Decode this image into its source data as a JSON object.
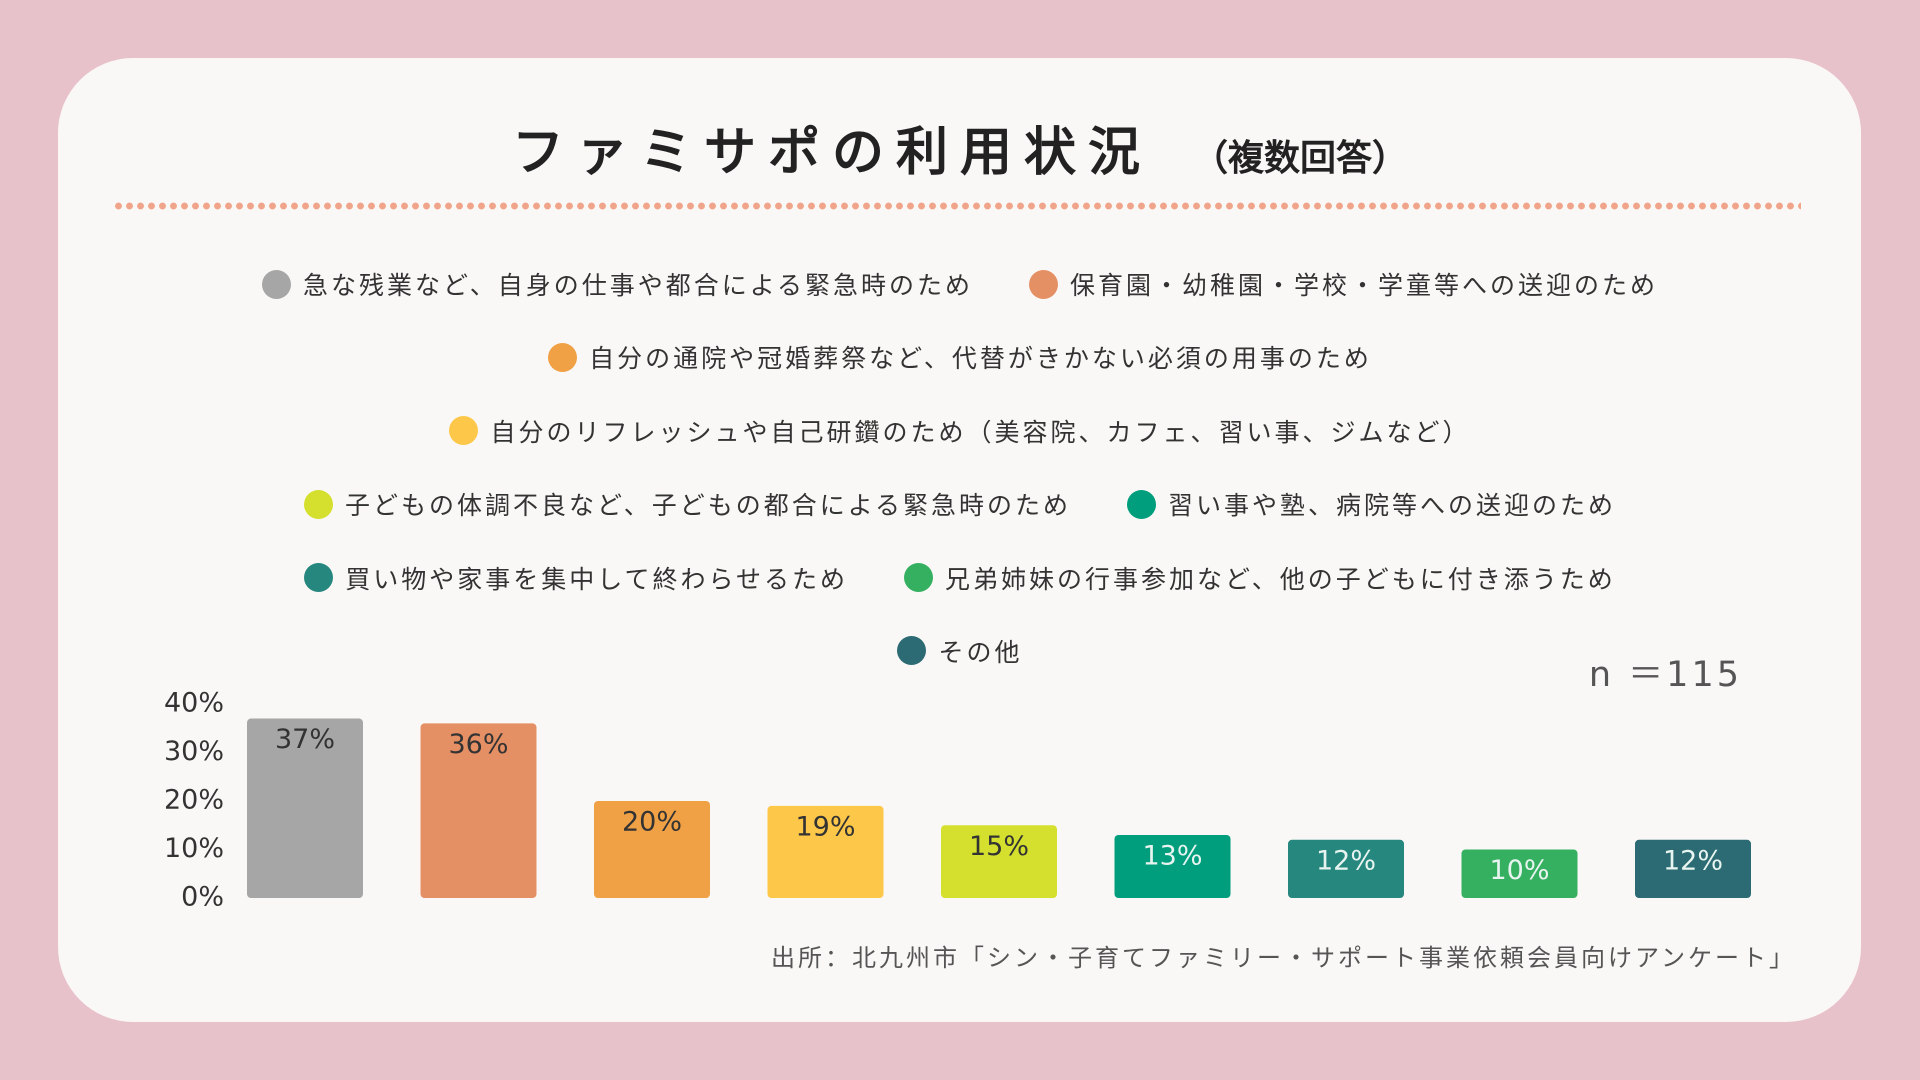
{
  "chart_data": {
    "type": "bar",
    "title": "ファミサポの利用状況",
    "subtitle": "（複数回答）",
    "note": "n ＝115",
    "source": "出所：北九州市「シン・子育てファミリー・サポート事業依頼会員向けアンケート」",
    "categories": [
      "急な残業など、自身の仕事や都合による緊急時のため",
      "保育園・幼稚園・学校・学童等への送迎のため",
      "自分の通院や冠婚葬祭など、代替がきかない必須の用事のため",
      "自分のリフレッシュや自己研鑽のため（美容院、カフェ、習い事、ジムなど）",
      "子どもの体調不良など、子どもの都合による緊急時のため",
      "習い事や塾、病院等への送迎のため",
      "買い物や家事を集中して終わらせるため",
      "兄弟姉妹の行事参加など、他の子どもに付き添うため",
      "その他"
    ],
    "values": [
      37,
      36,
      20,
      19,
      15,
      13,
      12,
      10,
      12
    ],
    "value_labels": [
      "37%",
      "36%",
      "20%",
      "19%",
      "15%",
      "13%",
      "12%",
      "10%",
      "12%"
    ],
    "colors": [
      "#a6a6a6",
      "#e58f65",
      "#f0a045",
      "#fdc84a",
      "#d4e02d",
      "#009e7c",
      "#26877f",
      "#35b060",
      "#2c6b73"
    ],
    "ylim": [
      0,
      40
    ],
    "yticks": [
      {
        "value": 0,
        "label": "0%"
      },
      {
        "value": 10,
        "label": "10%"
      },
      {
        "value": 20,
        "label": "20%"
      },
      {
        "value": 30,
        "label": "30%"
      },
      {
        "value": 40,
        "label": "40%"
      }
    ],
    "legend": "top"
  }
}
